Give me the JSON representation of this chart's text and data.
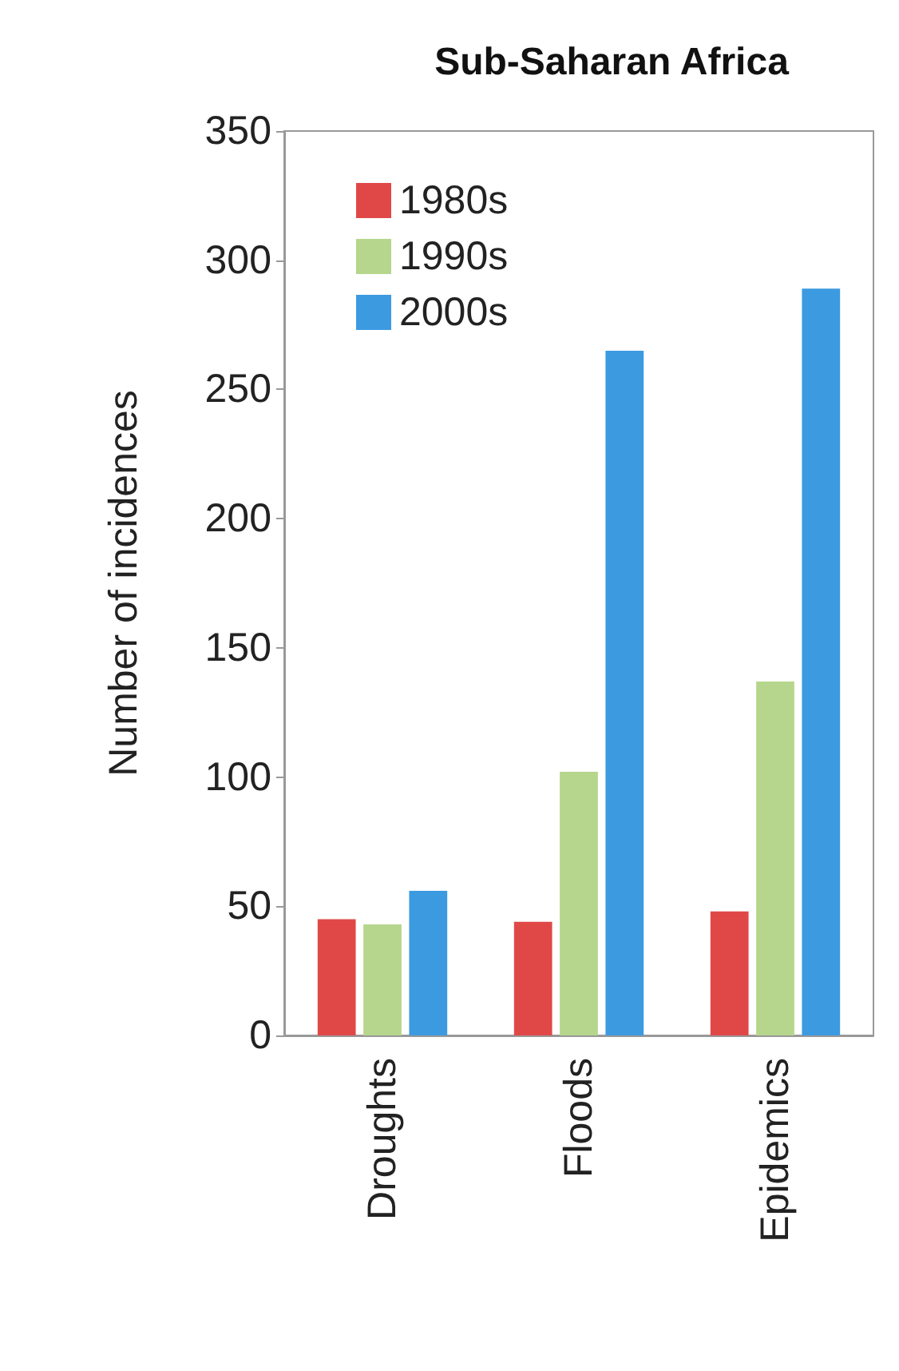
{
  "chart_data": {
    "type": "bar",
    "title": "Sub-Saharan Africa",
    "ylabel": "Number of incidences",
    "categories": [
      "Droughts",
      "Floods",
      "Epidemics"
    ],
    "series": [
      {
        "name": "1980s",
        "color": "#e04848",
        "values": [
          45,
          44,
          48
        ]
      },
      {
        "name": "1990s",
        "color": "#b5d68c",
        "values": [
          43,
          102,
          137
        ]
      },
      {
        "name": "2000s",
        "color": "#3c9ae0",
        "values": [
          56,
          265,
          289
        ]
      }
    ],
    "ylim": [
      0,
      350
    ],
    "yticks": [
      0,
      50,
      100,
      150,
      200,
      250,
      300,
      350
    ],
    "grid": false,
    "legend": "top left"
  }
}
